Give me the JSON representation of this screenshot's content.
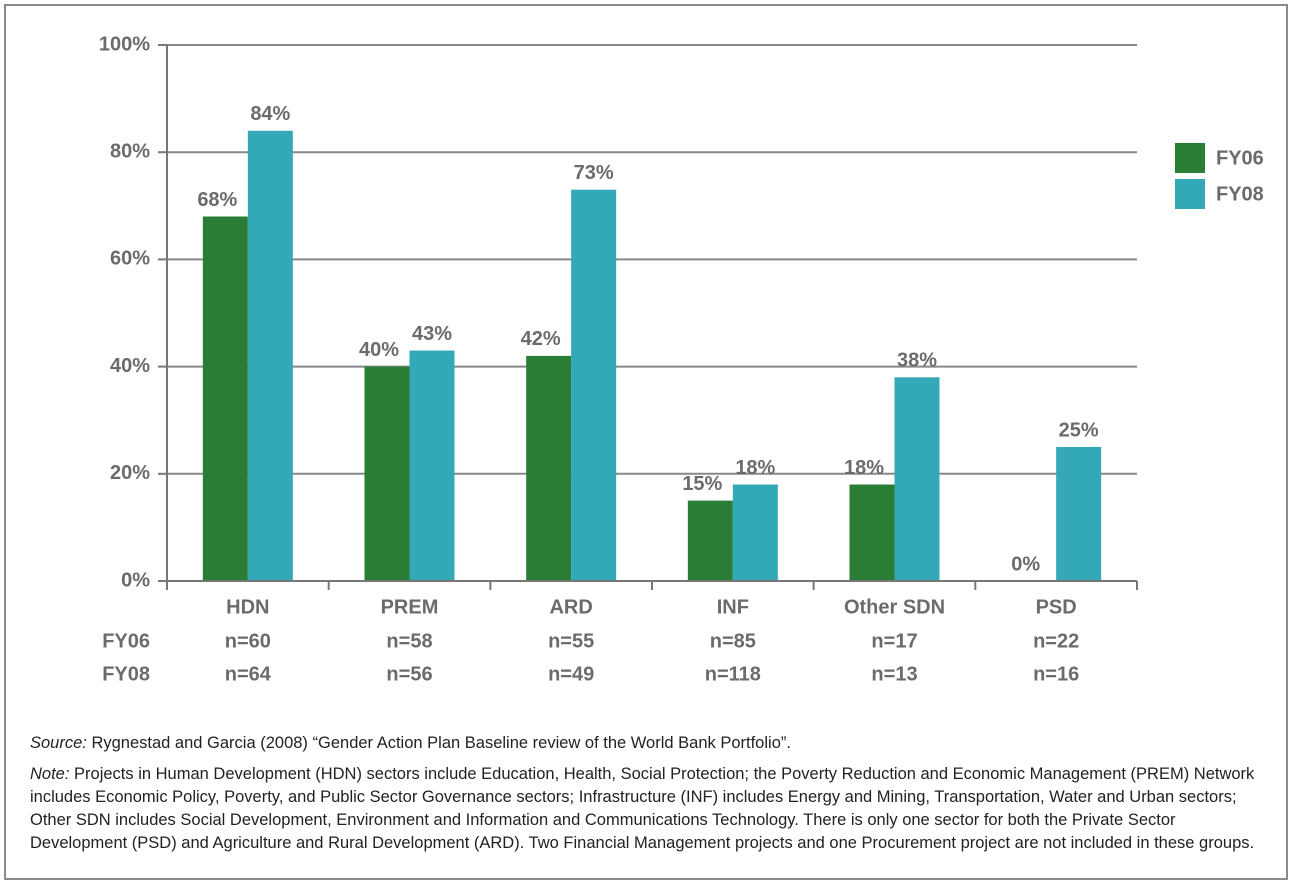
{
  "chart_data": {
    "type": "bar",
    "categories": [
      "HDN",
      "PREM",
      "ARD",
      "INF",
      "Other SDN",
      "PSD"
    ],
    "series": [
      {
        "name": "FY06",
        "color": "#2a7d34",
        "values": [
          68,
          40,
          42,
          15,
          18,
          0
        ],
        "value_labels": [
          "68%",
          "40%",
          "42%",
          "15%",
          "18%",
          "0%"
        ]
      },
      {
        "name": "FY08",
        "color": "#33a8b6",
        "values": [
          84,
          43,
          73,
          18,
          38,
          25
        ],
        "value_labels": [
          "84%",
          "43%",
          "73%",
          "18%",
          "38%",
          "25%"
        ]
      }
    ],
    "ylim": [
      0,
      100
    ],
    "yticks": [
      {
        "value": 0,
        "label": "0%"
      },
      {
        "value": 20,
        "label": "20%"
      },
      {
        "value": 40,
        "label": "40%"
      },
      {
        "value": 60,
        "label": "60%"
      },
      {
        "value": 80,
        "label": "80%"
      },
      {
        "value": 100,
        "label": "100%"
      }
    ],
    "grid": true,
    "legend": "upper right",
    "sample_sizes": [
      {
        "name": "FY06",
        "labels": [
          "n=60",
          "n=58",
          "n=55",
          "n=85",
          "n=17",
          "n=22"
        ]
      },
      {
        "name": "FY08",
        "labels": [
          "n=64",
          "n=56",
          "n=49",
          "n=118",
          "n=13",
          "n=16"
        ]
      }
    ],
    "source_label": "Source:",
    "source": "Rygnestad and Garcia (2008) “Gender Action Plan Baseline review of the World Bank Portfolio”.",
    "note_label": "Note:",
    "note": "Projects in Human Development (HDN) sectors include Education, Health, Social Protection; the Poverty Reduction and Economic Management (PREM) Network includes Economic Policy, Poverty, and Public Sector Governance sectors; Infrastructure (INF) includes Energy and Mining, Transportation, Water and Urban sectors; Other SDN includes Social Development, Environment and Information and Communications Technology.  There is only one sector for both the Private Sector Development (PSD) and Agriculture and Rural Development (ARD). Two Financial Management projects and one Procurement project are not included in these groups."
  }
}
